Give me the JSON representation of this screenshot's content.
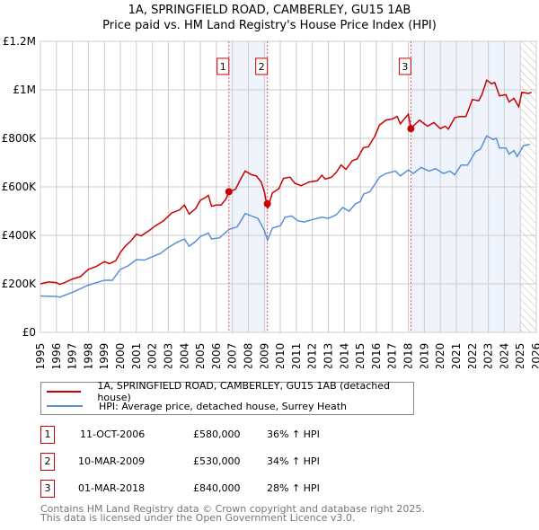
{
  "title": {
    "line1": "1A, SPRINGFIELD ROAD, CAMBERLEY, GU15 1AB",
    "line2": "Price paid vs. HM Land Registry's House Price Index (HPI)"
  },
  "chart_data": {
    "type": "line",
    "title": "1A, SPRINGFIELD ROAD, CAMBERLEY, GU15 1AB — Price paid vs. HM Land Registry's House Price Index (HPI)",
    "xlim": [
      1995,
      2026
    ],
    "ylim": [
      0,
      1200000
    ],
    "x_ticks": [
      "1995",
      "1996",
      "1997",
      "1998",
      "1999",
      "2000",
      "2001",
      "2002",
      "2003",
      "2004",
      "2005",
      "2006",
      "2007",
      "2008",
      "2009",
      "2010",
      "2011",
      "2012",
      "2013",
      "2014",
      "2015",
      "2016",
      "2017",
      "2018",
      "2019",
      "2020",
      "2021",
      "2022",
      "2023",
      "2024",
      "2025",
      "2026"
    ],
    "y_ticks": [
      {
        "v": 0,
        "label": "£0"
      },
      {
        "v": 200000,
        "label": "£200K"
      },
      {
        "v": 400000,
        "label": "£400K"
      },
      {
        "v": 600000,
        "label": "£600K"
      },
      {
        "v": 800000,
        "label": "£800K"
      },
      {
        "v": 1000000,
        "label": "£1M"
      },
      {
        "v": 1200000,
        "label": "£1.2M"
      }
    ],
    "grid": true,
    "colors": {
      "property": "#cc0000",
      "hpi": "#5b8fd6",
      "shade": "#eef3fc"
    },
    "forecast_start": 2025.0,
    "shaded_ranges": [
      [
        2006.78,
        2009.19
      ],
      [
        2018.16,
        2025.0
      ]
    ],
    "series": [
      {
        "name": "1A, SPRINGFIELD ROAD, CAMBERLEY, GU15 1AB (detached house)",
        "x": [
          1995,
          1995.5,
          1996,
          1996.2,
          1996.5,
          1997,
          1997.5,
          1998,
          1998.5,
          1999,
          1999.3,
          1999.7,
          2000,
          2000.3,
          2000.7,
          2001,
          2001.3,
          2001.8,
          2002.2,
          2002.7,
          2003.2,
          2003.7,
          2004,
          2004.3,
          2004.7,
          2005,
          2005.3,
          2005.5,
          2005.7,
          2006,
          2006.3,
          2006.6,
          2006.78,
          2007.2,
          2007.5,
          2007.8,
          2008.2,
          2008.5,
          2008.8,
          2009,
          2009.2,
          2009.5,
          2009.9,
          2010.2,
          2010.6,
          2010.9,
          2011.3,
          2011.8,
          2012.3,
          2012.6,
          2012.8,
          2013.2,
          2013.5,
          2013.8,
          2014.1,
          2014.5,
          2014.8,
          2015.2,
          2015.5,
          2015.9,
          2016.2,
          2016.6,
          2017,
          2017.3,
          2017.5,
          2018,
          2018.16,
          2018.3,
          2018.7,
          2019.2,
          2019.6,
          2020,
          2020.3,
          2020.5,
          2020.9,
          2021.2,
          2021.6,
          2022,
          2022.4,
          2022.6,
          2022.9,
          2023.2,
          2023.4,
          2023.7,
          2024.1,
          2024.3,
          2024.6,
          2024.9,
          2025.1,
          2025.5,
          2025.7
        ],
        "values": [
          200000,
          208000,
          205000,
          198000,
          205000,
          220000,
          230000,
          260000,
          272000,
          292000,
          283000,
          295000,
          330000,
          355000,
          380000,
          405000,
          398000,
          420000,
          440000,
          460000,
          492000,
          505000,
          525000,
          488000,
          510000,
          545000,
          555000,
          565000,
          520000,
          525000,
          525000,
          550000,
          580000,
          590000,
          630000,
          665000,
          650000,
          645000,
          620000,
          580000,
          510000,
          575000,
          592000,
          635000,
          640000,
          615000,
          605000,
          620000,
          625000,
          648000,
          632000,
          640000,
          660000,
          690000,
          672000,
          708000,
          715000,
          762000,
          765000,
          808000,
          855000,
          875000,
          880000,
          890000,
          860000,
          900000,
          840000,
          850000,
          875000,
          850000,
          865000,
          840000,
          850000,
          838000,
          885000,
          890000,
          890000,
          960000,
          955000,
          980000,
          1040000,
          1025000,
          1030000,
          975000,
          980000,
          950000,
          965000,
          930000,
          990000,
          985000,
          990000
        ]
      },
      {
        "name": "HPI: Average price, detached house, Surrey Heath",
        "x": [
          1995,
          1996,
          1996.2,
          1997,
          1998,
          1999,
          1999.5,
          2000,
          2000.5,
          2001,
          2001.5,
          2002,
          2002.5,
          2003,
          2003.5,
          2004,
          2004.3,
          2004.7,
          2005,
          2005.5,
          2005.7,
          2006.2,
          2006.8,
          2007.3,
          2007.8,
          2008.2,
          2008.6,
          2009,
          2009.2,
          2009.5,
          2010,
          2010.3,
          2010.7,
          2011.1,
          2011.5,
          2012,
          2012.6,
          2013,
          2013.5,
          2013.9,
          2014.3,
          2014.7,
          2015,
          2015.2,
          2015.6,
          2016.2,
          2016.6,
          2017.2,
          2017.5,
          2018,
          2018.3,
          2018.8,
          2019.3,
          2019.7,
          2020.2,
          2020.6,
          2020.9,
          2021.3,
          2021.7,
          2022.2,
          2022.5,
          2022.9,
          2023.3,
          2023.5,
          2023.7,
          2024.1,
          2024.3,
          2024.6,
          2024.8,
          2025.2,
          2025.6
        ],
        "values": [
          150000,
          148000,
          145000,
          165000,
          195000,
          215000,
          215000,
          260000,
          275000,
          300000,
          298000,
          312000,
          325000,
          350000,
          370000,
          385000,
          355000,
          375000,
          395000,
          410000,
          385000,
          390000,
          425000,
          435000,
          490000,
          480000,
          470000,
          420000,
          380000,
          430000,
          440000,
          475000,
          480000,
          460000,
          455000,
          465000,
          475000,
          470000,
          485000,
          515000,
          500000,
          530000,
          540000,
          570000,
          580000,
          640000,
          655000,
          665000,
          645000,
          670000,
          655000,
          680000,
          665000,
          675000,
          655000,
          665000,
          650000,
          690000,
          690000,
          745000,
          755000,
          810000,
          795000,
          800000,
          760000,
          760000,
          735000,
          750000,
          725000,
          770000,
          775000
        ]
      }
    ],
    "sales": [
      {
        "id": "1",
        "date": "11-OCT-2006",
        "x": 2006.78,
        "price": 580000,
        "price_label": "£580,000",
        "hpi_label": "36% ↑ HPI"
      },
      {
        "id": "2",
        "date": "10-MAR-2009",
        "x": 2009.19,
        "price": 530000,
        "price_label": "£530,000",
        "hpi_label": "34% ↑ HPI"
      },
      {
        "id": "3",
        "date": "01-MAR-2018",
        "x": 2018.16,
        "price": 840000,
        "price_label": "£840,000",
        "hpi_label": "28% ↑ HPI"
      }
    ],
    "legend_position": "bottom"
  },
  "legend": {
    "property": "1A, SPRINGFIELD ROAD, CAMBERLEY, GU15 1AB (detached house)",
    "hpi": "HPI: Average price, detached house, Surrey Heath"
  },
  "footer": {
    "line1": "Contains HM Land Registry data © Crown copyright and database right 2025.",
    "line2": "This data is licensed under the Open Government Licence v3.0."
  }
}
